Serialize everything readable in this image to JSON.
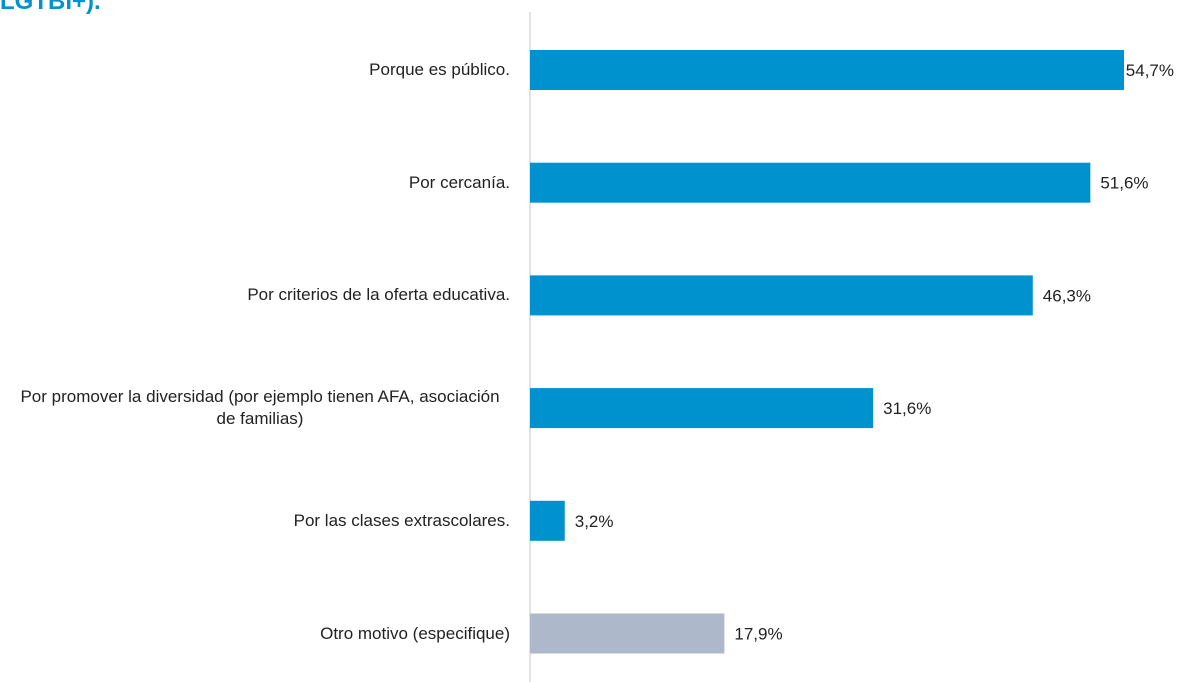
{
  "chart_data": {
    "type": "barh",
    "title": "LGTBI+).",
    "categories": [
      "Porque es público.",
      "Por cercanía.",
      "Por criterios de la oferta educativa.",
      "Por promover la diversidad (por ejemplo tienen AFA, asociación de familias)",
      "Por las clases extrascolares.",
      "Otro motivo (especifique)"
    ],
    "values": [
      54.7,
      51.6,
      46.3,
      31.6,
      3.2,
      17.9
    ],
    "value_labels": [
      "54,7%",
      "51,6%",
      "46,3%",
      "31,6%",
      "3,2%",
      "17,9%"
    ],
    "colors": [
      "#0091cf",
      "#0091cf",
      "#0091cf",
      "#0091cf",
      "#0091cf",
      "#adb9ca"
    ]
  }
}
